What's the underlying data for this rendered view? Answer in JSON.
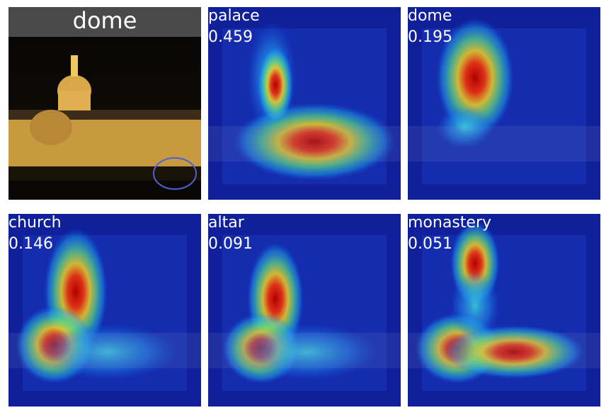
{
  "panels": [
    {
      "label": "dome"
    },
    {
      "label": "palace",
      "score": "0.459"
    },
    {
      "label": "dome",
      "score": "0.195"
    },
    {
      "label": "church",
      "score": "0.146"
    },
    {
      "label": "altar",
      "score": "0.091"
    },
    {
      "label": "monastery",
      "score": "0.051"
    }
  ]
}
